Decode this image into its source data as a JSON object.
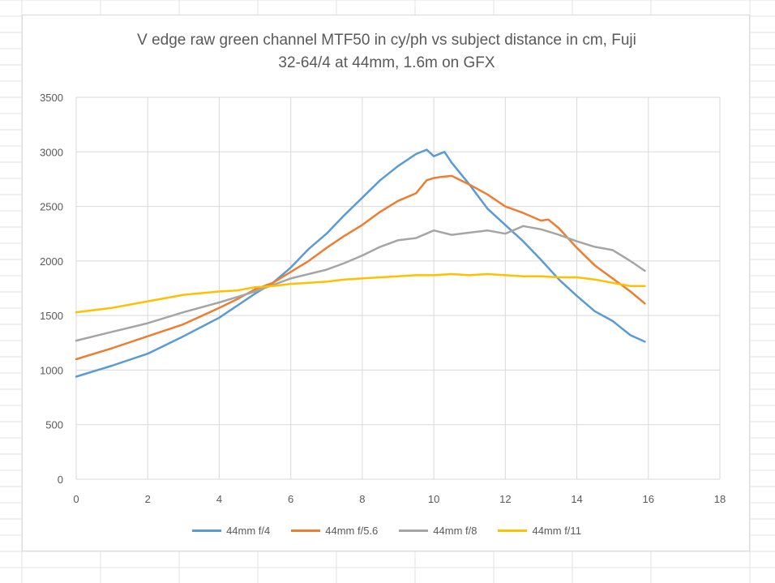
{
  "chart_data": {
    "type": "line",
    "title": [
      "V edge raw green channel MTF50 in cy/ph vs subject distance in cm, Fuji",
      "32-64/4 at 44mm, 1.6m on GFX"
    ],
    "xlabel": "",
    "ylabel": "",
    "xlim": [
      0,
      18
    ],
    "ylim": [
      0,
      3500
    ],
    "xticks": [
      "0",
      "2",
      "4",
      "6",
      "8",
      "10",
      "12",
      "14",
      "16",
      "18"
    ],
    "yticks": [
      "0",
      "500",
      "1000",
      "1500",
      "2000",
      "2500",
      "3000",
      "3500"
    ],
    "grid": true,
    "legend_position": "bottom",
    "series": [
      {
        "name": "44mm f/4",
        "color": "#5b9bd5",
        "x": [
          0,
          1,
          2,
          3,
          4,
          4.5,
          5,
          5.5,
          6,
          6.5,
          7,
          7.5,
          8,
          8.5,
          9,
          9.5,
          9.8,
          10,
          10.3,
          10.5,
          11,
          11.5,
          12,
          12.5,
          13,
          13.5,
          14,
          14.5,
          15,
          15.5,
          15.9
        ],
        "y": [
          940,
          1040,
          1150,
          1310,
          1480,
          1590,
          1700,
          1800,
          1940,
          2110,
          2250,
          2420,
          2580,
          2740,
          2870,
          2980,
          3020,
          2960,
          3000,
          2900,
          2700,
          2480,
          2330,
          2180,
          2010,
          1830,
          1680,
          1540,
          1450,
          1320,
          1260
        ]
      },
      {
        "name": "44mm f/5.6",
        "color": "#ed7d31",
        "x": [
          0,
          1,
          2,
          3,
          4,
          4.5,
          5,
          5.5,
          6,
          6.5,
          7,
          7.5,
          8,
          8.5,
          9,
          9.5,
          9.8,
          10,
          10.2,
          10.5,
          11,
          11.5,
          12,
          12.5,
          13,
          13.2,
          13.5,
          14,
          14.5,
          15,
          15.5,
          15.9
        ],
        "y": [
          1100,
          1200,
          1310,
          1420,
          1570,
          1650,
          1740,
          1800,
          1900,
          2000,
          2120,
          2230,
          2330,
          2450,
          2550,
          2620,
          2740,
          2760,
          2770,
          2780,
          2700,
          2610,
          2500,
          2440,
          2370,
          2380,
          2300,
          2120,
          1960,
          1840,
          1720,
          1610
        ]
      },
      {
        "name": "44mm f/8",
        "color": "#a5a5a5",
        "x": [
          0,
          1,
          2,
          3,
          4,
          4.5,
          5,
          5.5,
          6,
          6.5,
          7,
          7.5,
          8,
          8.5,
          9,
          9.5,
          10,
          10.5,
          11,
          11.5,
          12,
          12.5,
          13,
          13.5,
          14,
          14.5,
          15,
          15.5,
          15.9
        ],
        "y": [
          1270,
          1350,
          1430,
          1530,
          1620,
          1670,
          1720,
          1780,
          1840,
          1880,
          1920,
          1980,
          2050,
          2130,
          2190,
          2210,
          2280,
          2240,
          2260,
          2280,
          2250,
          2320,
          2290,
          2240,
          2180,
          2130,
          2100,
          2000,
          1910
        ]
      },
      {
        "name": "44mm f/11",
        "color": "#ffc000",
        "x": [
          0,
          1,
          2,
          3,
          4,
          4.5,
          5,
          5.5,
          6,
          6.5,
          7,
          7.5,
          8,
          8.5,
          9,
          9.5,
          10,
          10.5,
          11,
          11.5,
          12,
          12.5,
          13,
          13.5,
          14,
          14.5,
          15,
          15.5,
          15.9
        ],
        "y": [
          1530,
          1570,
          1630,
          1690,
          1720,
          1730,
          1760,
          1770,
          1790,
          1800,
          1810,
          1830,
          1840,
          1850,
          1860,
          1870,
          1870,
          1880,
          1870,
          1880,
          1870,
          1860,
          1860,
          1850,
          1850,
          1830,
          1800,
          1770,
          1770
        ]
      }
    ]
  }
}
